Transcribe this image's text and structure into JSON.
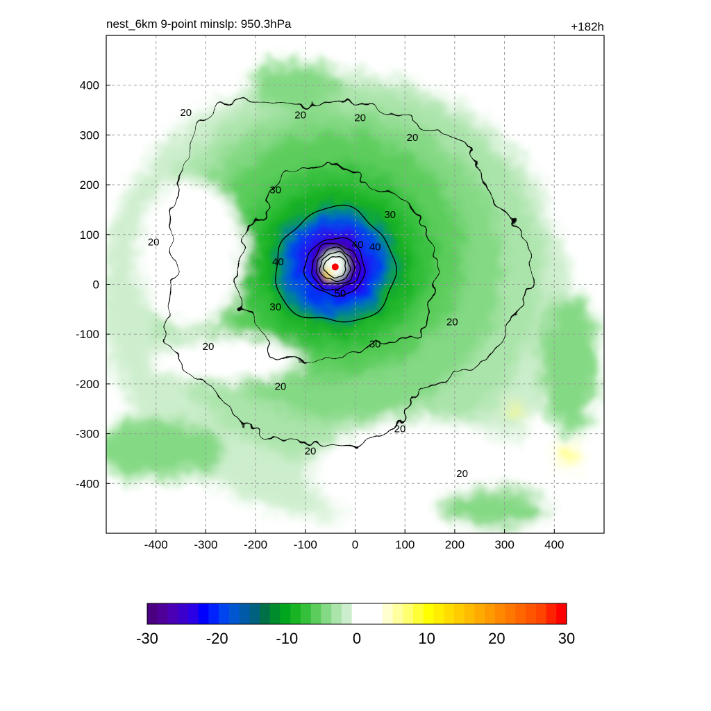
{
  "chart_data": {
    "type": "heatmap",
    "title_left": "nest_6km  9-point minslp: 950.3hPa",
    "title_right": "+182h",
    "xlabel": "",
    "ylabel": "",
    "xlim": [
      -500,
      500
    ],
    "ylim": [
      -500,
      500
    ],
    "x_ticks": [
      -400,
      -300,
      -200,
      -100,
      0,
      100,
      200,
      300,
      400
    ],
    "y_ticks": [
      400,
      300,
      200,
      100,
      0,
      -100,
      -200,
      -300,
      -400
    ],
    "grid": true,
    "center": {
      "x": -40,
      "y": 35
    },
    "contours": [
      {
        "level": 20,
        "label": "20",
        "radius": 360
      },
      {
        "level": 30,
        "label": "30",
        "radius": 200
      },
      {
        "level": 40,
        "label": "40",
        "radius": 120
      },
      {
        "level": 50,
        "label": "50",
        "radius": 60
      }
    ],
    "contour_label_positions": [
      {
        "text": "20",
        "x": -340,
        "y": 345
      },
      {
        "text": "20",
        "x": -110,
        "y": 340
      },
      {
        "text": "20",
        "x": 10,
        "y": 335
      },
      {
        "text": "20",
        "x": 115,
        "y": 295
      },
      {
        "text": "20",
        "x": -405,
        "y": 85
      },
      {
        "text": "20",
        "x": -295,
        "y": -125
      },
      {
        "text": "20",
        "x": -150,
        "y": -205
      },
      {
        "text": "20",
        "x": 195,
        "y": -75
      },
      {
        "text": "20",
        "x": 90,
        "y": -290
      },
      {
        "text": "20",
        "x": -90,
        "y": -335
      },
      {
        "text": "20",
        "x": 215,
        "y": -380
      },
      {
        "text": "30",
        "x": -160,
        "y": 190
      },
      {
        "text": "30",
        "x": 70,
        "y": 140
      },
      {
        "text": "30",
        "x": -160,
        "y": -45
      },
      {
        "text": "30",
        "x": 40,
        "y": -120
      },
      {
        "text": "40",
        "x": -155,
        "y": 45
      },
      {
        "text": "40",
        "x": 40,
        "y": 75
      },
      {
        "text": "40",
        "x": 5,
        "y": 80
      },
      {
        "text": "50",
        "x": -30,
        "y": -18
      }
    ],
    "colorbar": {
      "min": -30,
      "max": 30,
      "tick_labels": [
        "-30",
        "-20",
        "-10",
        "0",
        "10",
        "20",
        "30"
      ],
      "tick_values": [
        -30,
        -20,
        -10,
        0,
        10,
        20,
        30
      ],
      "colors": [
        "#4b0082",
        "#4f0098",
        "#4a00b4",
        "#3c00cc",
        "#2b00e6",
        "#0000ff",
        "#0022ff",
        "#0044f0",
        "#0055d0",
        "#005aa8",
        "#006080",
        "#007046",
        "#008c2c",
        "#00a51e",
        "#18b424",
        "#35c03c",
        "#5ccd5c",
        "#84d984",
        "#aae4aa",
        "#cdeecd",
        "#ffffff",
        "#ffffff",
        "#ffffff",
        "#ffffd0",
        "#ffffa0",
        "#ffff70",
        "#ffff38",
        "#ffff00",
        "#ffee00",
        "#ffdd00",
        "#ffcc00",
        "#ffbb00",
        "#ffaa00",
        "#ff9900",
        "#ff8800",
        "#ff7700",
        "#ff6600",
        "#ff5500",
        "#ff4400",
        "#ff2200",
        "#ff0000"
      ]
    },
    "accent_colors": {
      "center_marker": "#ff0000",
      "contour": "#000000",
      "grid": "#9a9a9a"
    }
  }
}
